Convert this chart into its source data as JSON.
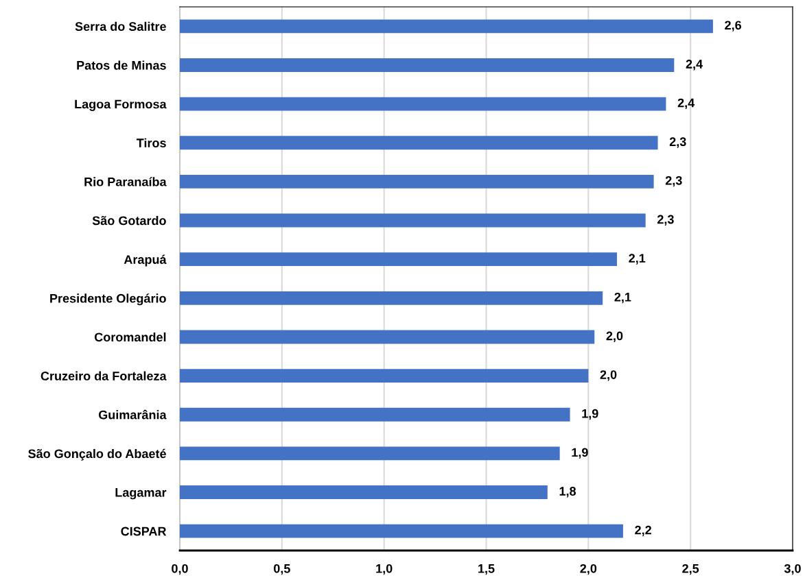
{
  "chart_data": {
    "type": "bar",
    "orientation": "horizontal",
    "categories": [
      "Serra do Salitre",
      "Patos de Minas",
      "Lagoa Formosa",
      "Tiros",
      "Rio Paranaíba",
      "São Gotardo",
      "Arapuá",
      "Presidente Olegário",
      "Coromandel",
      "Cruzeiro da Fortaleza",
      "Guimarânia",
      "São Gonçalo do Abaeté",
      "Lagamar",
      "CISPAR"
    ],
    "values": [
      2.61,
      2.42,
      2.38,
      2.34,
      2.32,
      2.28,
      2.14,
      2.07,
      2.03,
      2.0,
      1.91,
      1.86,
      1.8,
      2.17
    ],
    "value_labels": [
      "2,6",
      "2,4",
      "2,4",
      "2,3",
      "2,3",
      "2,3",
      "2,1",
      "2,1",
      "2,0",
      "2,0",
      "1,9",
      "1,9",
      "1,8",
      "2,2"
    ],
    "color": "#4472c4",
    "xlim": [
      0,
      3
    ],
    "xticks": [
      {
        "value": 0,
        "label": "0,0"
      },
      {
        "value": 0.5,
        "label": "0,5"
      },
      {
        "value": 1,
        "label": "1,0"
      },
      {
        "value": 1.5,
        "label": "1,5"
      },
      {
        "value": 2,
        "label": "2,0"
      },
      {
        "value": 2.5,
        "label": "2,5"
      },
      {
        "value": 3,
        "label": "3,0"
      }
    ],
    "grid": "x"
  }
}
